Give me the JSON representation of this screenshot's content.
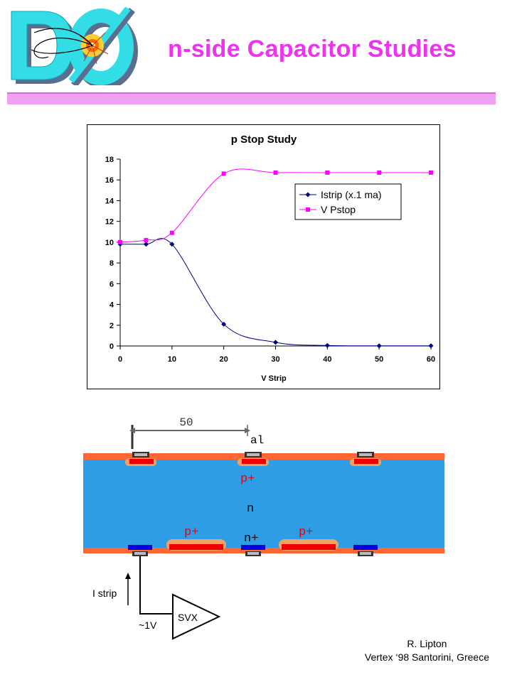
{
  "header": {
    "logo_text": "DØ",
    "title": "n-side Capacitor Studies"
  },
  "colors": {
    "title": "#ee33ee",
    "bar": "#f0a0f0",
    "logo_cyan": "#33dde6",
    "series_istrip": "#000080",
    "series_vpstop": "#ff00ff",
    "bulk": "#2e9de6",
    "oxide": "#ff6633",
    "implant": "#ee0000",
    "implant_halo": "#f4a060",
    "metal": "#333333",
    "n_plus": "#0000dd"
  },
  "chart_data": {
    "type": "line",
    "title": "p Stop Study",
    "xlabel": "V Strip",
    "ylabel": "",
    "x": [
      0,
      5,
      10,
      20,
      30,
      40,
      50,
      60
    ],
    "xlim": [
      0,
      60
    ],
    "ylim": [
      0,
      18
    ],
    "xticks": [
      0,
      10,
      20,
      30,
      40,
      50,
      60
    ],
    "yticks": [
      0,
      2,
      4,
      6,
      8,
      10,
      12,
      14,
      16,
      18
    ],
    "grid": false,
    "legend_position": "right",
    "series": [
      {
        "name": "Istrip (x.1 ma)",
        "color": "#000080",
        "marker": "diamond",
        "values": [
          9.8,
          9.8,
          9.8,
          2.1,
          0.35,
          0.05,
          0.02,
          0.02
        ]
      },
      {
        "name": "V Pstop",
        "color": "#ff00ff",
        "marker": "square",
        "values": [
          10.0,
          10.2,
          10.9,
          16.6,
          16.7,
          16.7,
          16.7,
          16.7
        ]
      }
    ]
  },
  "diagram": {
    "pitch_label": "50",
    "al_label": "al",
    "p_plus_label": "p+",
    "n_label": "n",
    "n_plus_label": "n+",
    "i_strip_label": "I strip",
    "svx_label": "SVX",
    "voltage_label": "~1V"
  },
  "footer": {
    "author": "R. Lipton",
    "venue": "Vertex ‘98 Santorini, Greece"
  }
}
